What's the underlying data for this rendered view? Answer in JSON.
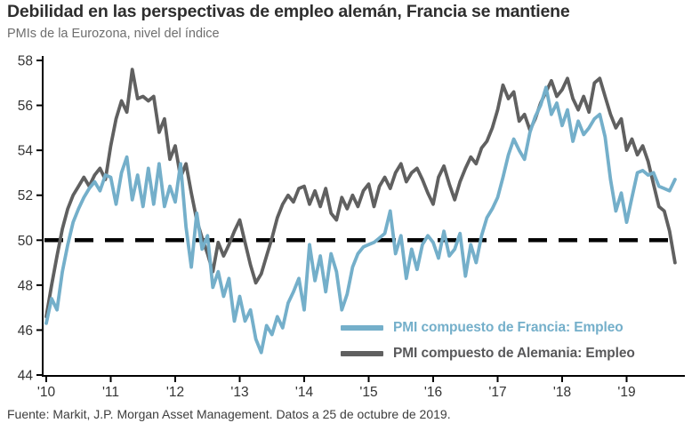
{
  "header": {
    "title": "Debilidad en las perspectivas de empleo alemán, Francia se mantiene",
    "subtitle": "PMIs de la Eurozona, nivel del índice"
  },
  "footer": {
    "source": "Fuente: Markit, J.P. Morgan Asset Management. Datos a 25 de octubre de 2019."
  },
  "colors": {
    "france_line": "#74afca",
    "germany_line": "#606060",
    "reference_line": "#000000",
    "axis": "#000000",
    "tick_label": "#333333",
    "germany_legend_text": "#58585a"
  },
  "chart_data": {
    "type": "line",
    "title": "Debilidad en las perspectivas de empleo alemán, Francia se mantiene",
    "subtitle": "PMIs de la Eurozona, nivel del índice",
    "x_unit": "month",
    "x_start": "2010-01",
    "x_end": "2019-10",
    "x_tick_labels": [
      "'10",
      "'11",
      "'12",
      "'13",
      "'14",
      "'15",
      "'16",
      "'17",
      "'18",
      "'19"
    ],
    "ylim": [
      44,
      58
    ],
    "y_ticks": [
      44,
      46,
      48,
      50,
      52,
      54,
      56,
      58
    ],
    "reference_line": 50,
    "grid": false,
    "legend_position": "inside-bottom-right",
    "series": [
      {
        "name": "PMI compuesto de Francia: Empleo",
        "color": "#74afca",
        "values": [
          46.3,
          47.4,
          46.9,
          48.6,
          49.8,
          50.8,
          51.4,
          51.9,
          52.3,
          52.6,
          52.2,
          52.9,
          52.8,
          51.6,
          53.0,
          53.7,
          51.8,
          52.9,
          51.5,
          53.2,
          51.6,
          53.4,
          51.5,
          52.4,
          51.7,
          53.4,
          50.6,
          48.8,
          51.2,
          49.6,
          50.2,
          47.9,
          48.6,
          47.5,
          48.3,
          46.4,
          47.5,
          46.4,
          46.9,
          45.6,
          45.0,
          46.2,
          45.8,
          46.6,
          46.1,
          47.2,
          47.7,
          48.3,
          46.9,
          49.8,
          48.2,
          49.3,
          47.7,
          49.4,
          48.6,
          46.9,
          47.6,
          48.8,
          49.4,
          49.7,
          49.8,
          49.9,
          50.1,
          50.3,
          51.3,
          49.4,
          50.2,
          48.3,
          49.6,
          48.7,
          49.8,
          50.2,
          49.9,
          49.2,
          50.4,
          49.3,
          49.6,
          50.3,
          48.4,
          49.8,
          49.0,
          50.2,
          51.0,
          51.4,
          51.9,
          52.8,
          53.8,
          54.5,
          54.0,
          53.6,
          54.8,
          55.5,
          56.0,
          56.8,
          55.6,
          56.1,
          55.1,
          55.8,
          54.4,
          55.3,
          54.7,
          55.0,
          55.4,
          55.6,
          54.6,
          52.7,
          51.3,
          52.1,
          50.8,
          51.9,
          53.0,
          53.1,
          52.9,
          53.0,
          52.4,
          52.3,
          52.2,
          52.7
        ]
      },
      {
        "name": "PMI compuesto de Alemania: Empleo",
        "color": "#606060",
        "values": [
          46.6,
          48.0,
          49.3,
          50.5,
          51.4,
          52.0,
          52.4,
          52.8,
          52.4,
          52.9,
          53.2,
          52.7,
          54.2,
          55.4,
          56.2,
          55.7,
          57.6,
          56.3,
          56.4,
          56.2,
          56.4,
          54.8,
          55.4,
          53.6,
          54.2,
          52.8,
          53.4,
          52.1,
          50.9,
          50.1,
          49.4,
          48.6,
          49.9,
          49.3,
          49.8,
          50.4,
          50.9,
          49.9,
          48.9,
          48.1,
          48.5,
          49.3,
          50.1,
          51.0,
          51.6,
          52.0,
          51.7,
          52.3,
          52.4,
          51.6,
          52.2,
          51.5,
          52.3,
          51.2,
          50.9,
          51.9,
          51.4,
          52.0,
          51.5,
          52.2,
          52.5,
          51.5,
          52.4,
          52.8,
          52.3,
          53.0,
          53.4,
          52.6,
          53.0,
          53.2,
          52.7,
          52.1,
          51.6,
          52.8,
          53.3,
          52.5,
          51.8,
          52.6,
          53.2,
          53.7,
          53.4,
          54.1,
          54.4,
          55.0,
          55.8,
          56.9,
          56.3,
          56.6,
          55.3,
          55.6,
          54.9,
          55.4,
          56.1,
          56.6,
          57.1,
          56.4,
          56.7,
          57.2,
          56.3,
          55.8,
          56.4,
          55.7,
          57.0,
          57.2,
          56.4,
          55.6,
          55.0,
          55.4,
          54.0,
          54.5,
          53.8,
          54.2,
          53.5,
          52.5,
          51.5,
          51.3,
          50.4,
          49.0
        ]
      }
    ]
  }
}
